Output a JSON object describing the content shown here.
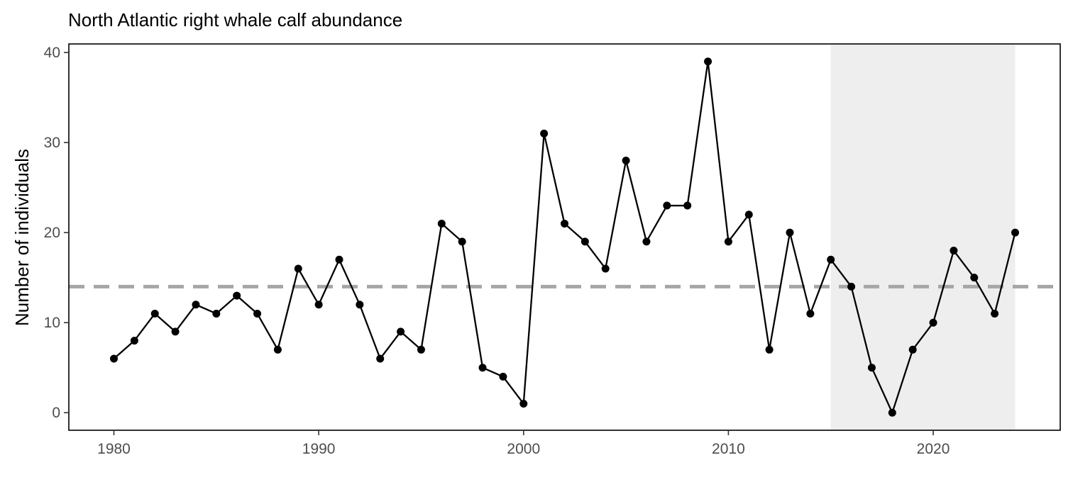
{
  "chart_data": {
    "type": "line",
    "title": "North Atlantic right whale calf abundance",
    "xlabel": "",
    "ylabel": "Number of individuals",
    "xlim": [
      1977.8,
      2026.2
    ],
    "ylim": [
      -1.95,
      40.95
    ],
    "x_ticks": [
      1980,
      1990,
      2000,
      2010,
      2020
    ],
    "y_ticks": [
      0,
      10,
      20,
      30,
      40
    ],
    "grid": false,
    "legend": "none",
    "reference_line": {
      "y": 14,
      "style": "dashed",
      "color": "#a6a6a6"
    },
    "shaded_region": {
      "x_start": 2015,
      "x_end": 2024,
      "color": "#eeeeee"
    },
    "line_color": "#000000",
    "x": [
      1980,
      1981,
      1982,
      1983,
      1984,
      1985,
      1986,
      1987,
      1988,
      1989,
      1990,
      1991,
      1992,
      1993,
      1994,
      1995,
      1996,
      1997,
      1998,
      1999,
      2000,
      2001,
      2002,
      2003,
      2004,
      2005,
      2006,
      2007,
      2008,
      2009,
      2010,
      2011,
      2012,
      2013,
      2014,
      2015,
      2016,
      2017,
      2018,
      2019,
      2020,
      2021,
      2022,
      2023,
      2024
    ],
    "y": [
      6,
      8,
      11,
      9,
      12,
      11,
      13,
      11,
      7,
      16,
      12,
      17,
      12,
      6,
      9,
      7,
      21,
      19,
      5,
      4,
      1,
      31,
      21,
      19,
      16,
      28,
      19,
      23,
      23,
      39,
      19,
      22,
      7,
      20,
      11,
      17,
      14,
      5,
      0,
      7,
      10,
      18,
      15,
      11,
      20
    ]
  }
}
